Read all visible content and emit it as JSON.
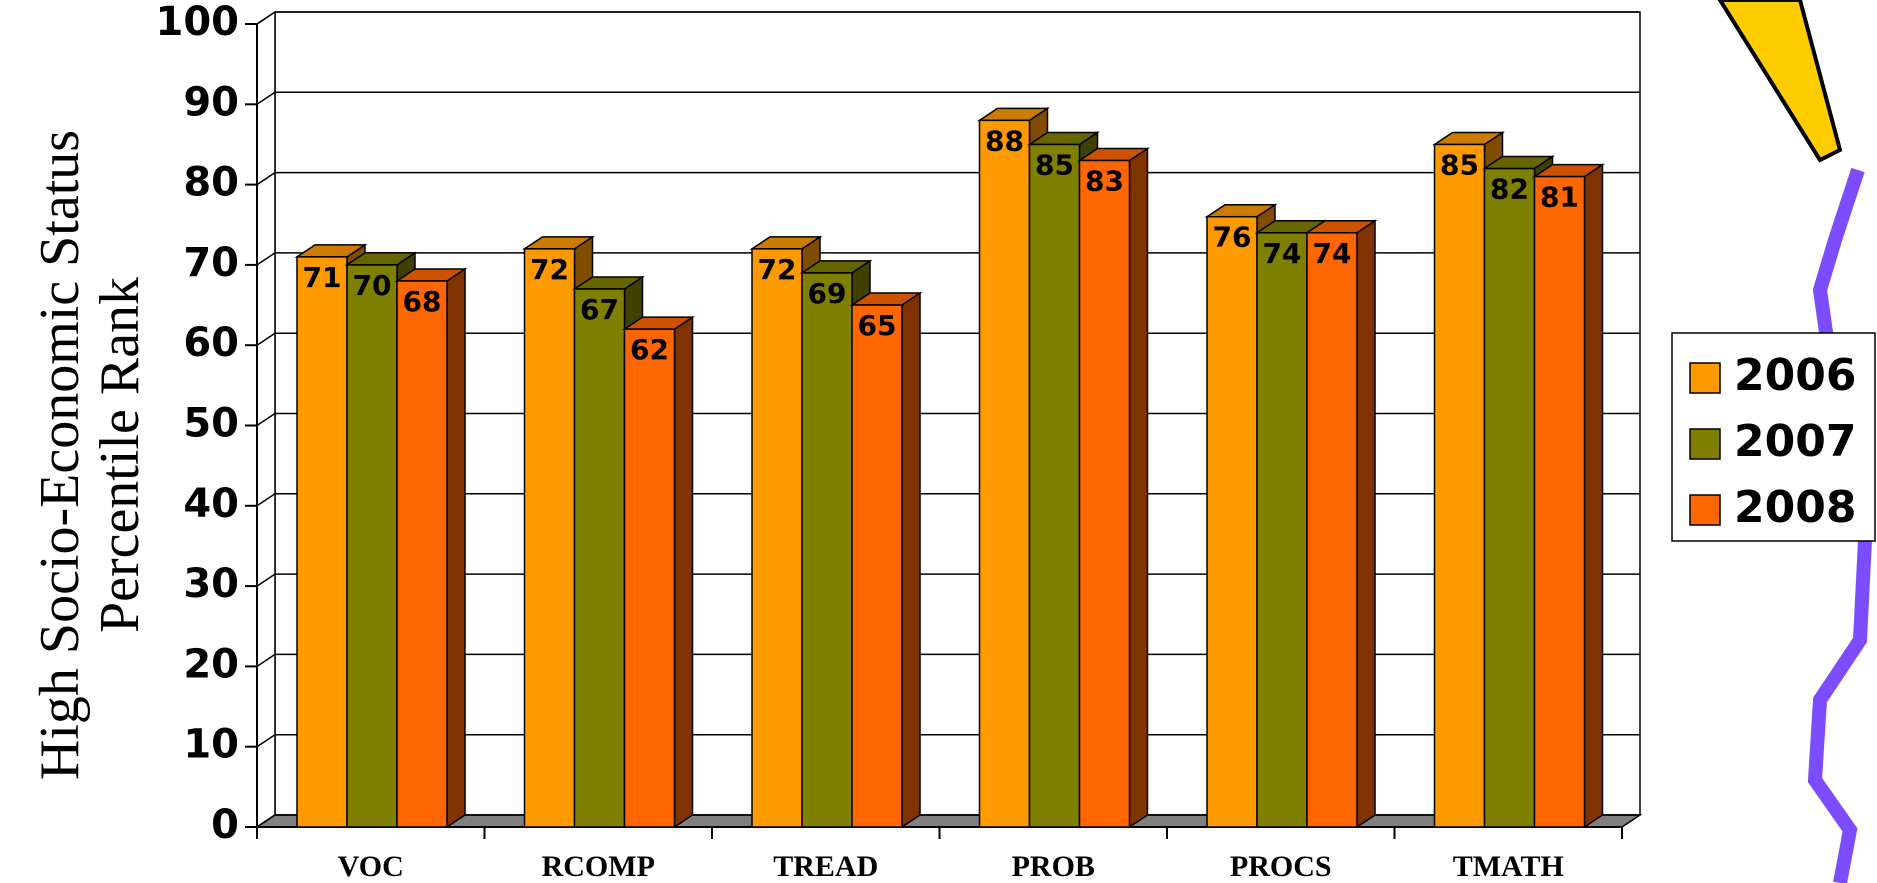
{
  "chart_data": {
    "type": "bar3d",
    "y_label": [
      "High Socio-Economic Status",
      "Percentile Rank"
    ],
    "categories": [
      "VOC",
      "RCOMP",
      "TREAD",
      "PROB",
      "PROCS",
      "TMATH"
    ],
    "series": [
      {
        "name": "2006",
        "color": "#FF9900",
        "values": [
          71,
          72,
          72,
          88,
          76,
          85
        ]
      },
      {
        "name": "2007",
        "color": "#808000",
        "values": [
          70,
          67,
          69,
          85,
          74,
          82
        ]
      },
      {
        "name": "2008",
        "color": "#FF6600",
        "values": [
          68,
          62,
          65,
          83,
          74,
          81
        ]
      }
    ],
    "ylim": [
      0,
      100
    ],
    "yticks": [
      0,
      10,
      20,
      30,
      40,
      50,
      60,
      70,
      80,
      90,
      100
    ],
    "grid": true,
    "legend": "right"
  }
}
